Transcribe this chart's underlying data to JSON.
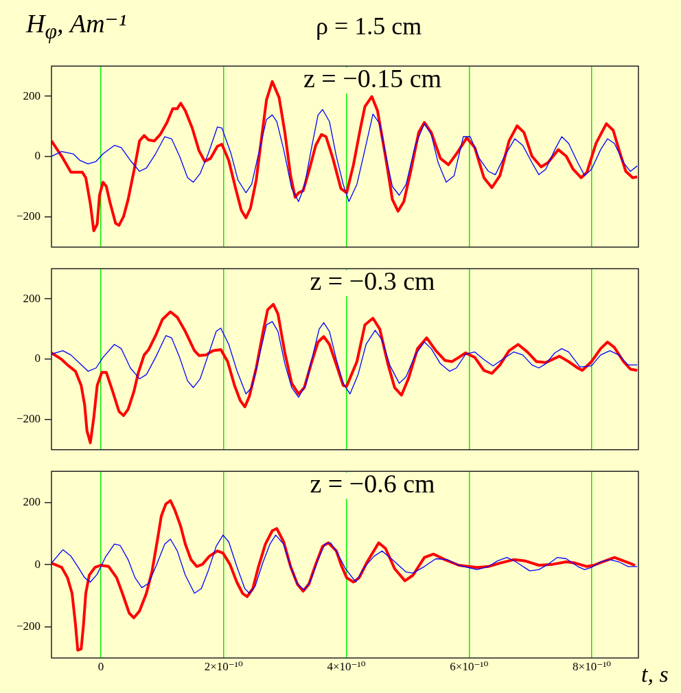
{
  "chart_data": [
    {
      "type": "line",
      "title": "ρ = 1.5 cm",
      "ylabel": "H$_{φ}$, Am⁻¹",
      "annotations": [
        "z = −0.15 cm"
      ],
      "xlim": [
        -8.05e-11,
        8.76e-10
      ],
      "xticks": [
        {
          "value": 0,
          "label": null
        },
        {
          "value": 2e-10,
          "label": null
        },
        {
          "value": 4e-10,
          "label": null
        },
        {
          "value": 6e-10,
          "label": null
        },
        {
          "value": 8e-10,
          "label": null
        }
      ],
      "ylim": [
        -300,
        300
      ],
      "yticks": [
        {
          "value": -200,
          "label": "−200"
        },
        {
          "value": 0,
          "label": "0"
        },
        {
          "value": 200,
          "label": "200"
        }
      ],
      "grid": "x",
      "tick_labels": "y",
      "legend": false,
      "series": [
        {
          "color": "#ff0000",
          "x": [
            -8.05e-11,
            -6.38e-11,
            -4.88e-11,
            -3.02e-11,
            -2.46e-11,
            -1.72e-11,
            -1.16e-11,
            -6e-12,
            -2.2e-12,
            3.4e-12,
            8.9e-12,
            1.45e-11,
            2.39e-11,
            2.95e-11,
            3.69e-11,
            4.44e-11,
            5.37e-11,
            6.3e-11,
            7.05e-11,
            7.79e-11,
            8.72e-11,
            9.66e-11,
            1.078e-10,
            1.171e-10,
            1.245e-10,
            1.301e-10,
            1.376e-10,
            1.488e-10,
            1.6e-10,
            1.693e-10,
            1.786e-10,
            1.898e-10,
            1.972e-10,
            2.084e-10,
            2.196e-10,
            2.289e-10,
            2.364e-10,
            2.438e-10,
            2.532e-10,
            2.625e-10,
            2.699e-10,
            2.793e-10,
            2.905e-10,
            2.998e-10,
            3.091e-10,
            3.166e-10,
            3.221e-10,
            3.296e-10,
            3.389e-10,
            3.501e-10,
            3.594e-10,
            3.669e-10,
            3.781e-10,
            3.911e-10,
            4.005e-10,
            4.116e-10,
            4.23e-10,
            4.303e-10,
            4.415e-10,
            4.508e-10,
            4.638e-10,
            4.75e-10,
            4.843e-10,
            4.937e-10,
            5.049e-10,
            5.179e-10,
            5.272e-10,
            5.384e-10,
            5.533e-10,
            5.664e-10,
            5.794e-10,
            5.962e-10,
            6.093e-10,
            6.242e-10,
            6.372e-10,
            6.503e-10,
            6.652e-10,
            6.783e-10,
            6.895e-10,
            7.025e-10,
            7.174e-10,
            7.286e-10,
            7.454e-10,
            7.584e-10,
            7.696e-10,
            7.827e-10,
            7.92e-10,
            8.069e-10,
            8.237e-10,
            8.349e-10,
            8.442e-10,
            8.554e-10,
            8.666e-10,
            8.74e-10
          ],
          "values": [
            52,
            1,
            -52,
            -52,
            -70,
            -156,
            -246,
            -224,
            -128,
            -85,
            -99,
            -149,
            -221,
            -228,
            -199,
            -142,
            -49,
            52,
            70,
            55,
            52,
            73,
            113,
            159,
            159,
            177,
            152,
            95,
            19,
            -16,
            -6,
            34,
            41,
            -13,
            -106,
            -178,
            -203,
            -171,
            -77,
            73,
            188,
            249,
            195,
            80,
            -63,
            -135,
            -120,
            -113,
            -49,
            37,
            73,
            66,
            -6,
            -106,
            -120,
            -27,
            95,
            166,
            199,
            152,
            1,
            -142,
            -181,
            -149,
            -49,
            80,
            113,
            80,
            -6,
            -27,
            9,
            62,
            30,
            -70,
            -103,
            -63,
            52,
            102,
            80,
            1,
            -34,
            -20,
            23,
            1,
            -42,
            -70,
            -52,
            44,
            109,
            87,
            23,
            -49,
            -70,
            -67
          ]
        },
        {
          "color": "#0000ff",
          "x": [
            -8.05e-11,
            -6.38e-11,
            -4.51e-11,
            -3.39e-11,
            -2.09e-11,
            -7.8e-12,
            3.4e-12,
            2.2e-11,
            3.32e-11,
            4.81e-11,
            6.3e-11,
            7.42e-11,
            8.91e-11,
            1.04e-10,
            1.152e-10,
            1.283e-10,
            1.413e-10,
            1.506e-10,
            1.618e-10,
            1.749e-10,
            1.898e-10,
            1.972e-10,
            2.122e-10,
            2.233e-10,
            2.364e-10,
            2.457e-10,
            2.569e-10,
            2.699e-10,
            2.793e-10,
            2.867e-10,
            2.979e-10,
            3.11e-10,
            3.221e-10,
            3.315e-10,
            3.427e-10,
            3.539e-10,
            3.613e-10,
            3.725e-10,
            3.837e-10,
            3.949e-10,
            4.042e-10,
            4.172e-10,
            4.303e-10,
            4.433e-10,
            4.545e-10,
            4.638e-10,
            4.75e-10,
            4.862e-10,
            4.974e-10,
            5.123e-10,
            5.272e-10,
            5.384e-10,
            5.496e-10,
            5.627e-10,
            5.757e-10,
            5.906e-10,
            6.018e-10,
            6.167e-10,
            6.316e-10,
            6.428e-10,
            6.577e-10,
            6.745e-10,
            6.876e-10,
            7.025e-10,
            7.137e-10,
            7.249e-10,
            7.398e-10,
            7.51e-10,
            7.622e-10,
            7.771e-10,
            7.883e-10,
            7.995e-10,
            8.144e-10,
            8.256e-10,
            8.368e-10,
            8.517e-10,
            8.629e-10,
            8.74e-10
          ],
          "values": [
            1,
            17,
            9,
            -13,
            -24,
            -16,
            9,
            37,
            30,
            -13,
            -49,
            -38,
            9,
            66,
            59,
            1,
            -70,
            -85,
            -56,
            9,
            98,
            95,
            9,
            -77,
            -120,
            -92,
            9,
            123,
            138,
            116,
            23,
            -106,
            -149,
            -99,
            23,
            138,
            156,
            116,
            1,
            -92,
            -149,
            -92,
            23,
            141,
            109,
            9,
            -99,
            -128,
            -92,
            37,
            109,
            73,
            -20,
            -85,
            -63,
            66,
            66,
            -6,
            -49,
            -60,
            1,
            59,
            37,
            -20,
            -60,
            -42,
            23,
            66,
            44,
            -20,
            -63,
            -42,
            23,
            59,
            44,
            -20,
            -49,
            -31
          ]
        }
      ]
    },
    {
      "type": "line",
      "annotations": [
        "z = −0.3 cm"
      ],
      "xlim": [
        -8.05e-11,
        8.76e-10
      ],
      "xticks": [
        {
          "value": 0,
          "label": null
        },
        {
          "value": 2e-10,
          "label": null
        },
        {
          "value": 4e-10,
          "label": null
        },
        {
          "value": 6e-10,
          "label": null
        },
        {
          "value": 8e-10,
          "label": null
        }
      ],
      "ylim": [
        -300,
        300
      ],
      "yticks": [
        {
          "value": -200,
          "label": "−200"
        },
        {
          "value": 0,
          "label": "0"
        },
        {
          "value": 200,
          "label": "200"
        }
      ],
      "grid": "x",
      "tick_labels": "y",
      "legend": false,
      "series": [
        {
          "color": "#ff0000",
          "x": [
            -8.05e-11,
            -6.38e-11,
            -5.26e-11,
            -4.14e-11,
            -3.21e-11,
            -2.65e-11,
            -2.27e-11,
            -1.72e-11,
            -1.16e-11,
            -6e-12,
            1.5e-12,
            8.9e-12,
            1.83e-11,
            2.95e-11,
            3.69e-11,
            4.44e-11,
            5.37e-11,
            6.11e-11,
            7.05e-11,
            7.79e-11,
            8.91e-11,
            1.003e-10,
            1.133e-10,
            1.245e-10,
            1.376e-10,
            1.525e-10,
            1.6e-10,
            1.711e-10,
            1.823e-10,
            1.954e-10,
            2.066e-10,
            2.178e-10,
            2.271e-10,
            2.346e-10,
            2.42e-10,
            2.532e-10,
            2.644e-10,
            2.718e-10,
            2.811e-10,
            2.886e-10,
            2.998e-10,
            3.11e-10,
            3.221e-10,
            3.315e-10,
            3.427e-10,
            3.539e-10,
            3.632e-10,
            3.725e-10,
            3.855e-10,
            3.949e-10,
            4.004e-10,
            4.172e-10,
            4.303e-10,
            4.433e-10,
            4.545e-10,
            4.676e-10,
            4.787e-10,
            4.899e-10,
            5.011e-10,
            5.16e-10,
            5.31e-10,
            5.459e-10,
            5.608e-10,
            5.72e-10,
            5.832e-10,
            5.944e-10,
            6.093e-10,
            6.242e-10,
            6.372e-10,
            6.503e-10,
            6.652e-10,
            6.801e-10,
            6.95e-10,
            7.1e-10,
            7.249e-10,
            7.472e-10,
            7.622e-10,
            7.771e-10,
            7.845e-10,
            7.995e-10,
            8.144e-10,
            8.256e-10,
            8.368e-10,
            8.517e-10,
            8.629e-10,
            8.74e-10
          ],
          "values": [
            21,
            -1,
            -22,
            -40,
            -87,
            -151,
            -237,
            -277,
            -194,
            -87,
            -44,
            -44,
            -101,
            -173,
            -187,
            -166,
            -108,
            -44,
            14,
            32,
            78,
            132,
            157,
            139,
            92,
            28,
            12,
            14,
            28,
            32,
            -8,
            -87,
            -137,
            -158,
            -123,
            -29,
            92,
            164,
            182,
            150,
            21,
            -80,
            -115,
            -94,
            -15,
            57,
            75,
            49,
            -29,
            -87,
            -90,
            -8,
            114,
            136,
            100,
            -15,
            -94,
            -119,
            -65,
            35,
            71,
            28,
            -4,
            -8,
            6,
            21,
            6,
            -37,
            -47,
            -19,
            28,
            49,
            24,
            -8,
            -11,
            10,
            -8,
            -29,
            -37,
            -8,
            35,
            57,
            39,
            -8,
            -33,
            -37
          ]
        },
        {
          "color": "#0000ff",
          "x": [
            -8.05e-11,
            -6.19e-11,
            -4.88e-11,
            -3.39e-11,
            -2.09e-11,
            -7.8e-12,
            3.4e-12,
            2.2e-11,
            3.32e-11,
            4.81e-11,
            6.3e-11,
            7.42e-11,
            8.91e-11,
            1.059e-10,
            1.152e-10,
            1.283e-10,
            1.413e-10,
            1.506e-10,
            1.618e-10,
            1.749e-10,
            1.879e-10,
            1.954e-10,
            2.084e-10,
            2.215e-10,
            2.364e-10,
            2.457e-10,
            2.569e-10,
            2.699e-10,
            2.793e-10,
            2.886e-10,
            2.998e-10,
            3.11e-10,
            3.221e-10,
            3.333e-10,
            3.445e-10,
            3.557e-10,
            3.632e-10,
            3.725e-10,
            3.837e-10,
            3.949e-10,
            4.06e-10,
            4.191e-10,
            4.321e-10,
            4.47e-10,
            4.582e-10,
            4.713e-10,
            4.862e-10,
            4.974e-10,
            5.123e-10,
            5.272e-10,
            5.384e-10,
            5.533e-10,
            5.682e-10,
            5.794e-10,
            5.944e-10,
            6.093e-10,
            6.242e-10,
            6.391e-10,
            6.54e-10,
            6.727e-10,
            6.876e-10,
            7.025e-10,
            7.137e-10,
            7.249e-10,
            7.398e-10,
            7.51e-10,
            7.622e-10,
            7.808e-10,
            7.995e-10,
            8.144e-10,
            8.293e-10,
            8.442e-10,
            8.591e-10,
            8.74e-10
          ],
          "values": [
            17,
            28,
            14,
            -15,
            -40,
            -29,
            6,
            49,
            35,
            -29,
            -65,
            -51,
            6,
            78,
            71,
            6,
            -72,
            -94,
            -65,
            14,
            92,
            103,
            49,
            -37,
            -115,
            -94,
            -1,
            114,
            125,
            92,
            -15,
            -94,
            -126,
            -87,
            6,
            100,
            121,
            92,
            -1,
            -80,
            -115,
            -51,
            49,
            96,
            64,
            -22,
            -80,
            -58,
            14,
            57,
            35,
            -15,
            -40,
            -29,
            17,
            24,
            -1,
            -22,
            -1,
            24,
            14,
            -19,
            -29,
            -15,
            21,
            35,
            24,
            -26,
            -22,
            14,
            28,
            14,
            -19,
            -19
          ]
        }
      ]
    },
    {
      "type": "line",
      "annotations": [
        "z = −0.6 cm"
      ],
      "xlabel": "t, s",
      "xlim": [
        -8.05e-11,
        8.76e-10
      ],
      "xticks": [
        {
          "value": 0,
          "label": "0"
        },
        {
          "value": 2e-10,
          "label": "2×10⁻¹⁰"
        },
        {
          "value": 4e-10,
          "label": "4×10⁻¹⁰"
        },
        {
          "value": 6e-10,
          "label": "6×10⁻¹⁰"
        },
        {
          "value": 8e-10,
          "label": "8×10⁻¹⁰"
        }
      ],
      "ylim": [
        -300,
        300
      ],
      "yticks": [
        {
          "value": -200,
          "label": "−200"
        },
        {
          "value": 0,
          "label": "0"
        },
        {
          "value": 200,
          "label": "200"
        }
      ],
      "grid": "x",
      "legend": false,
      "series": [
        {
          "color": "#ff0000",
          "x": [
            -8.05e-11,
            -6.38e-11,
            -5.44e-11,
            -4.7e-11,
            -4.14e-11,
            -3.77e-11,
            -3.21e-11,
            -2.83e-11,
            -2.46e-11,
            -1.9e-11,
            -9.7e-12,
            -4e-13,
            1.27e-11,
            2.57e-11,
            3.5e-11,
            4.62e-11,
            5.37e-11,
            6.3e-11,
            7.42e-11,
            8.35e-11,
            9.28e-11,
            9.84e-11,
            1.059e-10,
            1.133e-10,
            1.208e-10,
            1.301e-10,
            1.376e-10,
            1.469e-10,
            1.562e-10,
            1.655e-10,
            1.767e-10,
            1.898e-10,
            1.991e-10,
            2.103e-10,
            2.215e-10,
            2.308e-10,
            2.383e-10,
            2.476e-10,
            2.569e-10,
            2.681e-10,
            2.793e-10,
            2.867e-10,
            2.979e-10,
            3.091e-10,
            3.203e-10,
            3.296e-10,
            3.389e-10,
            3.501e-10,
            3.613e-10,
            3.706e-10,
            3.837e-10,
            3.911e-10,
            4.005e-10,
            4.116e-10,
            4.209e-10,
            4.34e-10,
            4.527e-10,
            4.638e-10,
            4.787e-10,
            4.955e-10,
            5.086e-10,
            5.272e-10,
            5.421e-10,
            5.608e-10,
            5.832e-10,
            6.13e-10,
            6.316e-10,
            6.503e-10,
            6.727e-10,
            6.913e-10,
            7.137e-10,
            7.361e-10,
            7.584e-10,
            7.733e-10,
            7.92e-10,
            8.032e-10,
            8.218e-10,
            8.368e-10,
            8.517e-10,
            8.703e-10
          ],
          "values": [
            5,
            -9,
            -42,
            -92,
            -192,
            -275,
            -271,
            -192,
            -92,
            -34,
            -9,
            -2,
            -6,
            -42,
            -92,
            -156,
            -171,
            -149,
            -92,
            -20,
            87,
            156,
            195,
            206,
            174,
            123,
            66,
            16,
            -6,
            1,
            27,
            44,
            37,
            1,
            -56,
            -92,
            -103,
            -77,
            -6,
            66,
            109,
            116,
            73,
            -6,
            -63,
            -85,
            -63,
            1,
            59,
            70,
            44,
            1,
            -42,
            -56,
            -42,
            9,
            70,
            52,
            -13,
            -52,
            -34,
            23,
            34,
            16,
            -2,
            -9,
            -6,
            5,
            16,
            12,
            -2,
            1,
            9,
            5,
            -6,
            -2,
            12,
            23,
            12,
            -2
          ]
        },
        {
          "color": "#0000ff",
          "x": [
            -8.05e-11,
            -6.19e-11,
            -4.88e-11,
            -3.77e-11,
            -2.65e-11,
            -1.72e-11,
            -6e-12,
            7.1e-12,
            2.2e-11,
            3.13e-11,
            4.44e-11,
            5.56e-11,
            6.68e-11,
            7.79e-11,
            9.1e-11,
            1.04e-10,
            1.133e-10,
            1.245e-10,
            1.376e-10,
            1.525e-10,
            1.637e-10,
            1.749e-10,
            1.879e-10,
            1.991e-10,
            2.084e-10,
            2.215e-10,
            2.345e-10,
            2.42e-10,
            2.513e-10,
            2.644e-10,
            2.755e-10,
            2.849e-10,
            2.979e-10,
            3.091e-10,
            3.203e-10,
            3.315e-10,
            3.408e-10,
            3.539e-10,
            3.65e-10,
            3.744e-10,
            3.855e-10,
            3.986e-10,
            4.153e-10,
            4.303e-10,
            4.452e-10,
            4.582e-10,
            4.75e-10,
            4.974e-10,
            5.086e-10,
            5.272e-10,
            5.459e-10,
            5.645e-10,
            5.832e-10,
            6.13e-10,
            6.316e-10,
            6.465e-10,
            6.615e-10,
            6.764e-10,
            6.988e-10,
            7.137e-10,
            7.286e-10,
            7.435e-10,
            7.584e-10,
            7.771e-10,
            7.883e-10,
            7.995e-10,
            8.144e-10,
            8.293e-10,
            8.442e-10,
            8.591e-10,
            8.74e-10
          ],
          "values": [
            5,
            48,
            27,
            -6,
            -42,
            -56,
            -31,
            23,
            66,
            62,
            16,
            -42,
            -74,
            -60,
            1,
            66,
            82,
            44,
            -34,
            -92,
            -77,
            -20,
            59,
            95,
            73,
            -6,
            -77,
            -92,
            -70,
            9,
            66,
            95,
            66,
            -6,
            -63,
            -81,
            -56,
            16,
            66,
            70,
            37,
            -13,
            -56,
            -6,
            27,
            44,
            16,
            -24,
            -27,
            -6,
            19,
            16,
            -2,
            -16,
            -6,
            12,
            23,
            9,
            -20,
            -16,
            1,
            23,
            19,
            -6,
            -16,
            -9,
            9,
            16,
            9,
            -6,
            -6
          ]
        }
      ]
    }
  ]
}
